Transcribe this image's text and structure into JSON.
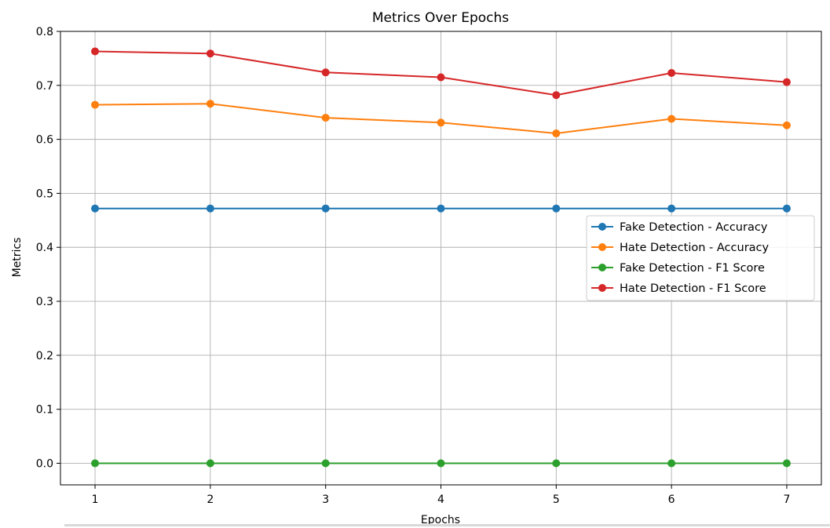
{
  "chart_data": {
    "type": "line",
    "title": "Metrics Over Epochs",
    "xlabel": "Epochs",
    "ylabel": "Metrics",
    "x": [
      1,
      2,
      3,
      4,
      5,
      6,
      7
    ],
    "xlim": [
      0.7,
      7.3
    ],
    "ylim": [
      -0.04,
      0.8
    ],
    "xticks": [
      "1",
      "2",
      "3",
      "4",
      "5",
      "6",
      "7"
    ],
    "yticks": [
      "0.0",
      "0.1",
      "0.2",
      "0.3",
      "0.4",
      "0.5",
      "0.6",
      "0.7",
      "0.8"
    ],
    "grid": true,
    "legend_position": "center-right",
    "series": [
      {
        "name": "Fake Detection - Accuracy",
        "color": "#1f77b4",
        "values": [
          0.472,
          0.472,
          0.472,
          0.472,
          0.472,
          0.472,
          0.472
        ]
      },
      {
        "name": "Hate Detection - Accuracy",
        "color": "#ff7f0e",
        "values": [
          0.664,
          0.666,
          0.64,
          0.631,
          0.611,
          0.638,
          0.626
        ]
      },
      {
        "name": "Fake Detection - F1 Score",
        "color": "#2ca02c",
        "values": [
          0.0,
          0.0,
          0.0,
          0.0,
          0.0,
          0.0,
          0.0
        ]
      },
      {
        "name": "Hate Detection - F1 Score",
        "color": "#d62728",
        "values": [
          0.763,
          0.759,
          0.724,
          0.715,
          0.682,
          0.723,
          0.706
        ]
      }
    ]
  }
}
